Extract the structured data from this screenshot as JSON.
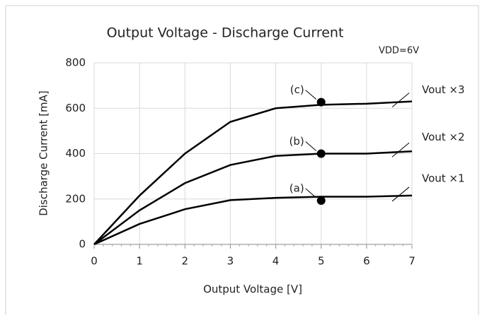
{
  "chart_data": {
    "type": "line",
    "title": "Output Voltage - Discharge Current",
    "annotation": "VDD=6V",
    "xlabel": "Output Voltage [V]",
    "ylabel": "Discharge Current [mA]",
    "x": [
      0,
      1,
      2,
      3,
      4,
      5,
      6,
      7
    ],
    "series": [
      {
        "name": "Vout ×1",
        "color": "#000000",
        "values": [
          0,
          90,
          155,
          195,
          205,
          210,
          210,
          215
        ]
      },
      {
        "name": "Vout ×2",
        "color": "#000000",
        "values": [
          0,
          150,
          270,
          350,
          390,
          400,
          400,
          410
        ]
      },
      {
        "name": "Vout ×3",
        "color": "#000000",
        "values": [
          0,
          215,
          400,
          540,
          600,
          615,
          620,
          630
        ]
      }
    ],
    "points": [
      {
        "label": "(a)",
        "x": 5,
        "y": 193
      },
      {
        "label": "(b)",
        "x": 5,
        "y": 400
      },
      {
        "label": "(c)",
        "x": 5,
        "y": 627
      }
    ],
    "xlim": [
      0,
      7
    ],
    "xticks": [
      0,
      1,
      2,
      3,
      4,
      5,
      6,
      7
    ],
    "ylim": [
      0,
      800
    ],
    "yticks": [
      0,
      200,
      400,
      600,
      800
    ],
    "grid": true
  }
}
